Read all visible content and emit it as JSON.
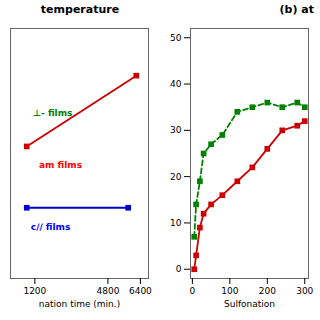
{
  "chart_data": [
    {
      "type": "line",
      "title": "temperature",
      "xlabel": "nation time (min.)",
      "xlim": [
        0,
        6800
      ],
      "ylim": [
        5,
        58
      ],
      "xticks": [
        1200,
        4800,
        6400
      ],
      "tick_labels": "x",
      "series": [
        {
          "color": "#cc0000",
          "marker": "square",
          "line_style": "solid",
          "x": [
            800,
            6200
          ],
          "values": [
            33,
            48
          ]
        },
        {
          "color": "#0000cc",
          "marker": "square",
          "line_style": "solid",
          "x": [
            800,
            5800
          ],
          "values": [
            20,
            20
          ]
        }
      ],
      "annotations": [
        {
          "text": "⊥- films",
          "x": 1100,
          "y": 40,
          "color": "green"
        },
        {
          "text": "am films",
          "x": 1400,
          "y": 29,
          "color": "red"
        },
        {
          "text": "c∕∕ films",
          "x": 1000,
          "y": 16,
          "color": "blue"
        }
      ]
    },
    {
      "type": "line",
      "title": "(b) at",
      "xlabel": "Sulfonation",
      "x": [
        5,
        10,
        20,
        30,
        50,
        80,
        120,
        160,
        200,
        240,
        280,
        300
      ],
      "xlim": [
        -5,
        310
      ],
      "xticks": [
        0,
        100,
        200,
        300
      ],
      "ylim": [
        -2,
        52
      ],
      "yticks": [
        0,
        10,
        20,
        30,
        40,
        50
      ],
      "series": [
        {
          "color": "green",
          "marker": "square",
          "line_style": "dashed",
          "values": [
            7,
            14,
            19,
            25,
            27,
            29,
            34,
            35,
            36,
            35,
            36,
            35
          ]
        },
        {
          "color": "#cc0000",
          "marker": "square",
          "line_style": "solid",
          "values": [
            0,
            3,
            9,
            12,
            14,
            16,
            19,
            22,
            26,
            30,
            31,
            32
          ]
        }
      ]
    }
  ]
}
